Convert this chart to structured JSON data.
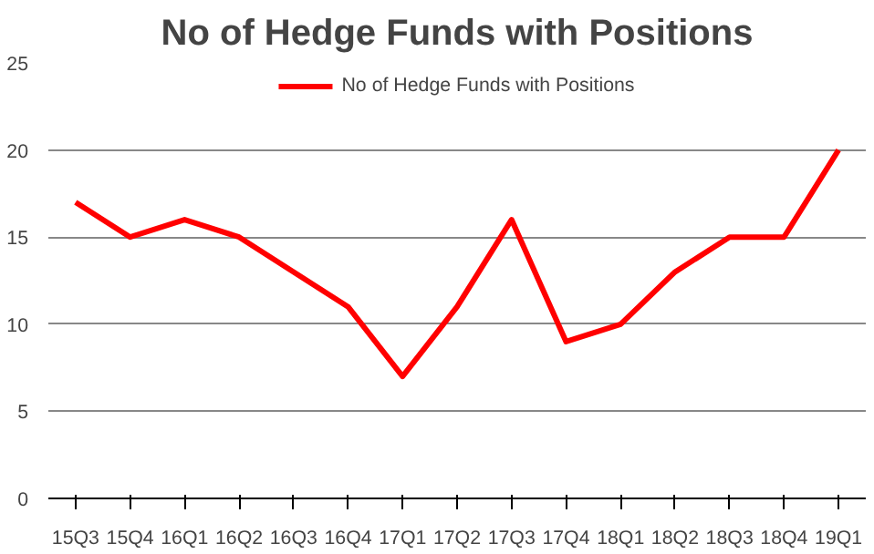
{
  "chart_data": {
    "type": "line",
    "title": "No of Hedge Funds with Positions",
    "categories": [
      "15Q3",
      "15Q4",
      "16Q1",
      "16Q2",
      "16Q3",
      "16Q4",
      "17Q1",
      "17Q2",
      "17Q3",
      "17Q4",
      "18Q1",
      "18Q2",
      "18Q3",
      "18Q4",
      "19Q1"
    ],
    "series": [
      {
        "name": "No of Hedge Funds with Positions",
        "color": "#ff0000",
        "values": [
          17,
          15,
          16,
          15,
          13,
          11,
          7,
          11,
          16,
          9,
          10,
          13,
          15,
          15,
          20
        ]
      }
    ],
    "ylim": [
      0,
      25
    ],
    "yticks": [
      0,
      5,
      10,
      15,
      20,
      25
    ],
    "grid": "y",
    "legend": "top",
    "marker": "none",
    "line_style": "solid"
  }
}
